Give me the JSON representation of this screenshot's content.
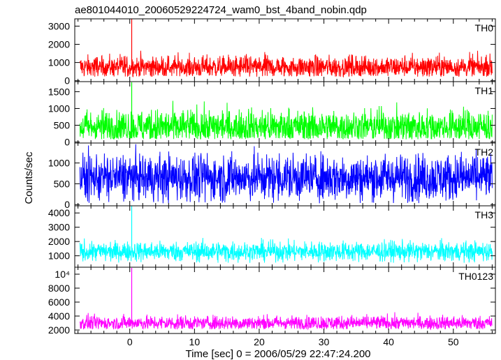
{
  "chart_data": {
    "type": "line",
    "title": "ae801044010_20060529224724_wam0_bst_4band_nobin.qdp",
    "xlabel": "Time [sec] 0 = 2006/05/29 22:47:24.200",
    "ylabel": "Counts/sec",
    "xlim": [
      -8.5,
      56.5
    ],
    "xticks": [
      0,
      10,
      20,
      30,
      40,
      50
    ],
    "grid": false,
    "panels": [
      {
        "name": "TH0",
        "color": "#ff0000",
        "ylim": [
          -50,
          3400
        ],
        "yticks": [
          {
            "v": 0,
            "label": "0"
          },
          {
            "v": 1000,
            "label": "1000"
          },
          {
            "v": 2000,
            "label": "2000"
          },
          {
            "v": 3000,
            "label": "3000"
          }
        ],
        "baseline": 750,
        "noise_min": 220,
        "noise_max": 1800,
        "spike": {
          "x": 0.3,
          "y": 3380
        },
        "profile": [
          [
            -8.5,
            750
          ],
          [
            56,
            750
          ]
        ]
      },
      {
        "name": "TH1",
        "color": "#00ff00",
        "ylim": [
          -30,
          1800
        ],
        "yticks": [
          {
            "v": 0,
            "label": "0"
          },
          {
            "v": 500,
            "label": "500"
          },
          {
            "v": 1000,
            "label": "1000"
          },
          {
            "v": 1500,
            "label": "1500"
          }
        ],
        "baseline": 450,
        "noise_min": 80,
        "noise_max": 1400,
        "spike": {
          "x": 0.3,
          "y": 1780
        },
        "profile": [
          [
            -8.5,
            450
          ],
          [
            56,
            450
          ]
        ]
      },
      {
        "name": "TH2",
        "color": "#0000ff",
        "ylim": [
          -30,
          1480
        ],
        "yticks": [
          {
            "v": 0,
            "label": "0"
          },
          {
            "v": 500,
            "label": "500"
          },
          {
            "v": 1000,
            "label": "1000"
          }
        ],
        "baseline": 650,
        "noise_min": 30,
        "noise_max": 1480,
        "spike": null,
        "profile": [
          [
            -8.5,
            650
          ],
          [
            56,
            650
          ]
        ]
      },
      {
        "name": "TH3",
        "color": "#00ffff",
        "ylim": [
          200,
          4500
        ],
        "yticks": [
          {
            "v": 1000,
            "label": "1000"
          },
          {
            "v": 2000,
            "label": "2000"
          },
          {
            "v": 3000,
            "label": "3000"
          },
          {
            "v": 4000,
            "label": "4000"
          }
        ],
        "baseline": 1300,
        "noise_min": 500,
        "noise_max": 2300,
        "spike": {
          "x": 0.3,
          "y": 4480
        },
        "profile": [
          [
            -8.5,
            1300
          ],
          [
            56,
            1300
          ]
        ]
      },
      {
        "name": "TH0123",
        "color": "#ff00ff",
        "ylim": [
          1500,
          11000
        ],
        "yticks": [
          {
            "v": 2000,
            "label": "2000"
          },
          {
            "v": 4000,
            "label": "4000"
          },
          {
            "v": 6000,
            "label": "6000"
          },
          {
            "v": 8000,
            "label": "8000"
          },
          {
            "v": 10000,
            "label": "10⁴"
          }
        ],
        "baseline": 3000,
        "noise_min": 2100,
        "noise_max": 4800,
        "spike": {
          "x": 0.3,
          "y": 10900
        },
        "profile": [
          [
            -8.5,
            3000
          ],
          [
            56,
            3000
          ]
        ]
      }
    ]
  }
}
